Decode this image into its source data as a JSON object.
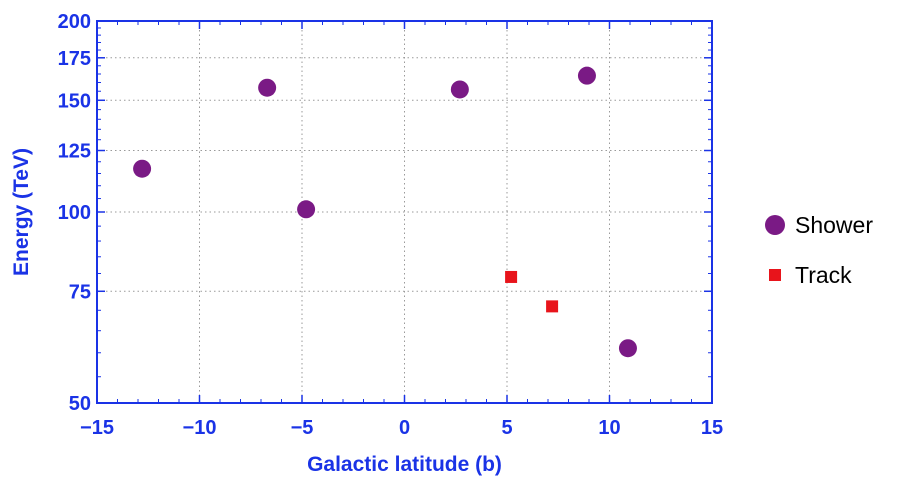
{
  "chart_data": {
    "type": "scatter",
    "title": "",
    "xlabel": "Galactic latitude (b)",
    "ylabel": "Energy (TeV)",
    "xlim": [
      -15,
      15
    ],
    "ylim": [
      50,
      200
    ],
    "yscale": "log",
    "x_ticks": [
      -15,
      -10,
      -5,
      0,
      5,
      10,
      15
    ],
    "x_tick_labels": [
      "−15",
      "−10",
      "−5",
      "0",
      "5",
      "10",
      "15"
    ],
    "y_ticks": [
      50,
      75,
      100,
      125,
      150,
      175,
      200
    ],
    "y_tick_labels": [
      "50",
      "75",
      "100",
      "125",
      "150",
      "175",
      "200"
    ],
    "grid": true,
    "legend_position": "right",
    "series": [
      {
        "name": "Shower",
        "marker": "circle",
        "color": "#7a1a85",
        "points": [
          {
            "x": -12.8,
            "y": 117
          },
          {
            "x": -6.7,
            "y": 157
          },
          {
            "x": -4.8,
            "y": 101
          },
          {
            "x": 2.7,
            "y": 156
          },
          {
            "x": 8.9,
            "y": 164
          },
          {
            "x": 10.9,
            "y": 61
          }
        ]
      },
      {
        "name": "Track",
        "marker": "square",
        "color": "#e8141b",
        "points": [
          {
            "x": 5.2,
            "y": 79
          },
          {
            "x": 7.2,
            "y": 71
          }
        ]
      }
    ]
  },
  "legend": {
    "items": [
      {
        "label": "Shower"
      },
      {
        "label": "Track"
      }
    ]
  }
}
